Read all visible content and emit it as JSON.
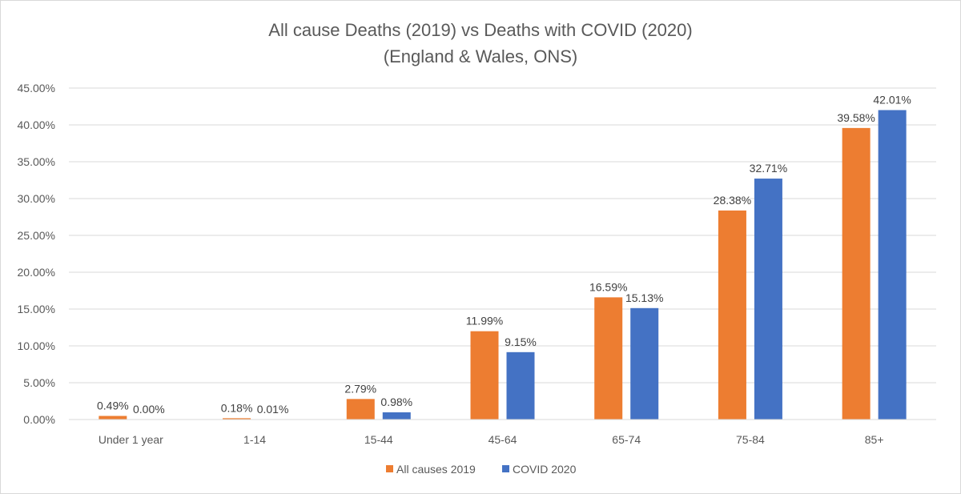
{
  "chart_data": {
    "type": "bar",
    "title": "All cause Deaths (2019) vs Deaths with COVID (2020)",
    "subtitle": "(England & Wales, ONS)",
    "categories": [
      "Under 1 year",
      "1-14",
      "15-44",
      "45-64",
      "65-74",
      "75-84",
      "85+"
    ],
    "series": [
      {
        "name": "All causes 2019",
        "color": "#ED7D31",
        "values": [
          0.49,
          0.18,
          2.79,
          11.99,
          16.59,
          28.38,
          39.58
        ],
        "labels": [
          "0.49%",
          "0.18%",
          "2.79%",
          "11.99%",
          "16.59%",
          "28.38%",
          "39.58%"
        ]
      },
      {
        "name": "COVID 2020",
        "color": "#4472C4",
        "values": [
          0.0,
          0.01,
          0.98,
          9.15,
          15.13,
          32.71,
          42.01
        ],
        "labels": [
          "0.00%",
          "0.01%",
          "0.98%",
          "9.15%",
          "15.13%",
          "32.71%",
          "42.01%"
        ]
      }
    ],
    "yticks": [
      0,
      5,
      10,
      15,
      20,
      25,
      30,
      35,
      40,
      45
    ],
    "ytick_labels": [
      "0.00%",
      "5.00%",
      "10.00%",
      "15.00%",
      "20.00%",
      "25.00%",
      "30.00%",
      "35.00%",
      "40.00%",
      "45.00%"
    ],
    "ylim": [
      0,
      45
    ],
    "xlabel": "",
    "ylabel": "",
    "grid": true,
    "legend_position": "bottom"
  }
}
